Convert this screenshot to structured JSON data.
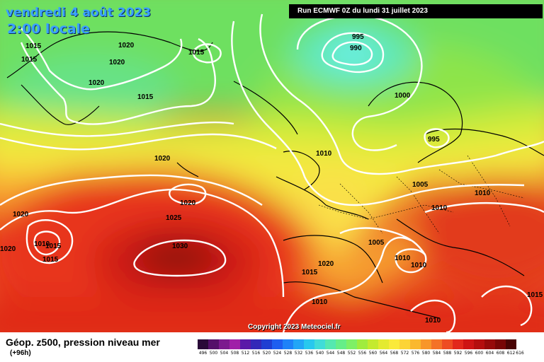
{
  "header": {
    "date": "vendredi 4 août 2023",
    "local_time": "2:00 locale",
    "run": "Run ECMWF 0Z du lundi 31 juillet 2023"
  },
  "footer": {
    "title": "Géop. z500, pression niveau mer",
    "lead": "(+96h)",
    "copyright": "Copyright 2023 Meteociel.fr"
  },
  "scale": {
    "ticks": [
      "496",
      "500",
      "504",
      "508",
      "512",
      "516",
      "520",
      "524",
      "528",
      "532",
      "536",
      "540",
      "544",
      "548",
      "552",
      "556",
      "560",
      "564",
      "568",
      "572",
      "576",
      "580",
      "584",
      "588",
      "592",
      "596",
      "600",
      "604",
      "608",
      "612",
      "616"
    ],
    "colors": [
      "#2a0a38",
      "#55106a",
      "#7c1a8e",
      "#a020a8",
      "#5a1aa8",
      "#3328b8",
      "#1f3ed2",
      "#1e5ef0",
      "#1e82f8",
      "#22a6f6",
      "#28c8ee",
      "#40dcd8",
      "#55e8b0",
      "#66ee88",
      "#7ef066",
      "#a0ec3e",
      "#c4ea2e",
      "#e4ea30",
      "#faea3a",
      "#fcd436",
      "#fab82e",
      "#f8962a",
      "#f47226",
      "#ee4c22",
      "#e2281c",
      "#ce1414",
      "#b40e0e",
      "#960a0a",
      "#780606",
      "#4a0404"
    ]
  },
  "isobars": [
    {
      "v": "1015",
      "id": "a"
    },
    {
      "v": "1015",
      "id": "b"
    },
    {
      "v": "1020",
      "id": "c"
    },
    {
      "v": "1020",
      "id": "d"
    },
    {
      "v": "1020",
      "id": "e"
    },
    {
      "v": "1015",
      "id": "f"
    },
    {
      "v": "1015",
      "id": "g"
    },
    {
      "v": "995",
      "id": "h"
    },
    {
      "v": "990",
      "id": "i"
    },
    {
      "v": "1000",
      "id": "j"
    },
    {
      "v": "995",
      "id": "k"
    },
    {
      "v": "1010",
      "id": "l"
    },
    {
      "v": "1020",
      "id": "m"
    },
    {
      "v": "1005",
      "id": "n"
    },
    {
      "v": "1010",
      "id": "o"
    },
    {
      "v": "1010",
      "id": "p"
    },
    {
      "v": "1020",
      "id": "q"
    },
    {
      "v": "1025",
      "id": "r"
    },
    {
      "v": "1020",
      "id": "s"
    },
    {
      "v": "1020",
      "id": "t"
    },
    {
      "v": "1010",
      "id": "u"
    },
    {
      "v": "1015",
      "id": "v"
    },
    {
      "v": "1015",
      "id": "w"
    },
    {
      "v": "1030",
      "id": "x"
    },
    {
      "v": "1005",
      "id": "y"
    },
    {
      "v": "1010",
      "id": "z"
    },
    {
      "v": "1010",
      "id": "aa"
    },
    {
      "v": "1020",
      "id": "ab"
    },
    {
      "v": "1015",
      "id": "ac"
    },
    {
      "v": "1010",
      "id": "ad"
    },
    {
      "v": "1010",
      "id": "ae"
    },
    {
      "v": "1015",
      "id": "af"
    },
    {
      "v": "1015",
      "id": "ag"
    }
  ]
}
